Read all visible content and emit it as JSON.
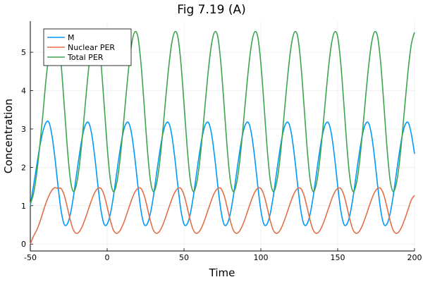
{
  "chart_data": {
    "type": "line",
    "title": "Fig 7.19 (A)",
    "xlabel": "Time",
    "ylabel": "Concentration",
    "xlim": [
      -50,
      200
    ],
    "ylim": [
      -0.18,
      5.81
    ],
    "xticks": [
      -50,
      0,
      50,
      100,
      150,
      200
    ],
    "yticks": [
      0,
      1,
      2,
      3,
      4,
      5
    ],
    "grid": true,
    "legend_position": "top-left",
    "x": [
      -50,
      -48,
      -46,
      -44,
      -42,
      -40,
      -38,
      -36,
      -34,
      -32,
      -30,
      -28,
      -26,
      -24,
      -22,
      -20,
      -18,
      -16,
      -14,
      -12,
      -10,
      -8,
      -6,
      -4,
      -2,
      0,
      2,
      4,
      6,
      8,
      10,
      12,
      14,
      16,
      18,
      20,
      22,
      24,
      26,
      28,
      30,
      32,
      34,
      36,
      38,
      40,
      42,
      44,
      46,
      48,
      50,
      52,
      54,
      56,
      58,
      60,
      62,
      64,
      66,
      68,
      70,
      72,
      74,
      76,
      78,
      80,
      82,
      84,
      86,
      88,
      90,
      92,
      94,
      96,
      98,
      100,
      102,
      104,
      106,
      108,
      110,
      112,
      114,
      116,
      118,
      120,
      122,
      124,
      126,
      128,
      130,
      132,
      134,
      136,
      138,
      140,
      142,
      144,
      146,
      148,
      150,
      152,
      154,
      156,
      158,
      160,
      162,
      164,
      166,
      168,
      170,
      172,
      174,
      176,
      178,
      180,
      182,
      184,
      186,
      188,
      190,
      192,
      194,
      196,
      198,
      200
    ],
    "series": [
      {
        "name": "M",
        "color": "#009AFA",
        "values": [
          1.0,
          1.5,
          2.0,
          2.5,
          2.9,
          3.15,
          3.18,
          2.85,
          2.25,
          1.52,
          0.88,
          0.52,
          0.52,
          0.77,
          1.22,
          1.79,
          2.35,
          2.83,
          3.12,
          3.16,
          2.85,
          2.25,
          1.52,
          0.88,
          0.52,
          0.52,
          0.77,
          1.22,
          1.79,
          2.35,
          2.83,
          3.12,
          3.16,
          2.85,
          2.25,
          1.52,
          0.88,
          0.52,
          0.52,
          0.77,
          1.22,
          1.79,
          2.35,
          2.83,
          3.12,
          3.16,
          2.85,
          2.25,
          1.52,
          0.88,
          0.52,
          0.52,
          0.77,
          1.22,
          1.79,
          2.35,
          2.83,
          3.12,
          3.16,
          2.85,
          2.25,
          1.52,
          0.88,
          0.52,
          0.52,
          0.77,
          1.22,
          1.79,
          2.35,
          2.83,
          3.12,
          3.16,
          2.85,
          2.25,
          1.52,
          0.88,
          0.52,
          0.52,
          0.77,
          1.22,
          1.79,
          2.35,
          2.83,
          3.12,
          3.16,
          2.85,
          2.25,
          1.52,
          0.88,
          0.52,
          0.52,
          0.77,
          1.22,
          1.79,
          2.35,
          2.83,
          3.12,
          3.16,
          2.85,
          2.25,
          1.52,
          0.88,
          0.52,
          0.52,
          0.77,
          1.22,
          1.79,
          2.35,
          2.83,
          3.12,
          3.16,
          2.85,
          2.25,
          1.52,
          0.88,
          0.52,
          0.52,
          0.77,
          1.22,
          1.79,
          2.35,
          2.83,
          3.12,
          3.16,
          2.85,
          2.35
        ]
      },
      {
        "name": "Nuclear PER",
        "color": "#E26F46",
        "values": [
          0.0,
          0.2,
          0.35,
          0.55,
          0.8,
          1.05,
          1.25,
          1.4,
          1.47,
          1.45,
          1.45,
          1.28,
          0.97,
          0.63,
          0.37,
          0.28,
          0.33,
          0.48,
          0.69,
          0.93,
          1.16,
          1.35,
          1.45,
          1.45,
          1.28,
          0.97,
          0.63,
          0.37,
          0.28,
          0.33,
          0.48,
          0.69,
          0.93,
          1.16,
          1.35,
          1.45,
          1.45,
          1.28,
          0.97,
          0.63,
          0.37,
          0.28,
          0.33,
          0.48,
          0.69,
          0.93,
          1.16,
          1.35,
          1.45,
          1.45,
          1.28,
          0.97,
          0.63,
          0.37,
          0.28,
          0.33,
          0.48,
          0.69,
          0.93,
          1.16,
          1.35,
          1.45,
          1.45,
          1.28,
          0.97,
          0.63,
          0.37,
          0.28,
          0.33,
          0.48,
          0.69,
          0.93,
          1.16,
          1.35,
          1.45,
          1.45,
          1.28,
          0.97,
          0.63,
          0.37,
          0.28,
          0.33,
          0.48,
          0.69,
          0.93,
          1.16,
          1.35,
          1.45,
          1.45,
          1.28,
          0.97,
          0.63,
          0.37,
          0.28,
          0.33,
          0.48,
          0.69,
          0.93,
          1.16,
          1.35,
          1.45,
          1.45,
          1.28,
          0.97,
          0.63,
          0.37,
          0.28,
          0.33,
          0.48,
          0.69,
          0.93,
          1.16,
          1.35,
          1.45,
          1.45,
          1.28,
          0.97,
          0.63,
          0.37,
          0.28,
          0.33,
          0.48,
          0.69,
          0.93,
          1.16,
          1.27
        ]
      },
      {
        "name": "Total PER",
        "color": "#3EA44E",
        "values": [
          1.05,
          1.3,
          1.8,
          2.5,
          3.3,
          4.2,
          4.9,
          5.4,
          5.6,
          5.4,
          4.71,
          3.66,
          2.55,
          1.7,
          1.37,
          1.55,
          2.07,
          2.86,
          3.75,
          4.59,
          5.23,
          5.53,
          5.4,
          4.71,
          3.66,
          2.55,
          1.7,
          1.37,
          1.55,
          2.07,
          2.86,
          3.75,
          4.59,
          5.23,
          5.53,
          5.4,
          4.71,
          3.66,
          2.55,
          1.7,
          1.37,
          1.55,
          2.07,
          2.86,
          3.75,
          4.59,
          5.23,
          5.53,
          5.4,
          4.71,
          3.66,
          2.55,
          1.7,
          1.37,
          1.55,
          2.07,
          2.86,
          3.75,
          4.59,
          5.23,
          5.53,
          5.4,
          4.71,
          3.66,
          2.55,
          1.7,
          1.37,
          1.55,
          2.07,
          2.86,
          3.75,
          4.59,
          5.23,
          5.53,
          5.4,
          4.71,
          3.66,
          2.55,
          1.7,
          1.37,
          1.55,
          2.07,
          2.86,
          3.75,
          4.59,
          5.23,
          5.53,
          5.4,
          4.71,
          3.66,
          2.55,
          1.7,
          1.37,
          1.55,
          2.07,
          2.86,
          3.75,
          4.59,
          5.23,
          5.53,
          5.4,
          4.71,
          3.66,
          2.55,
          1.7,
          1.37,
          1.55,
          2.07,
          2.86,
          3.75,
          4.59,
          5.23,
          5.53,
          5.4,
          4.71,
          3.66,
          2.55,
          1.7,
          1.37,
          1.55,
          2.07,
          2.86,
          3.75,
          4.59,
          5.23,
          5.52
        ]
      }
    ]
  }
}
